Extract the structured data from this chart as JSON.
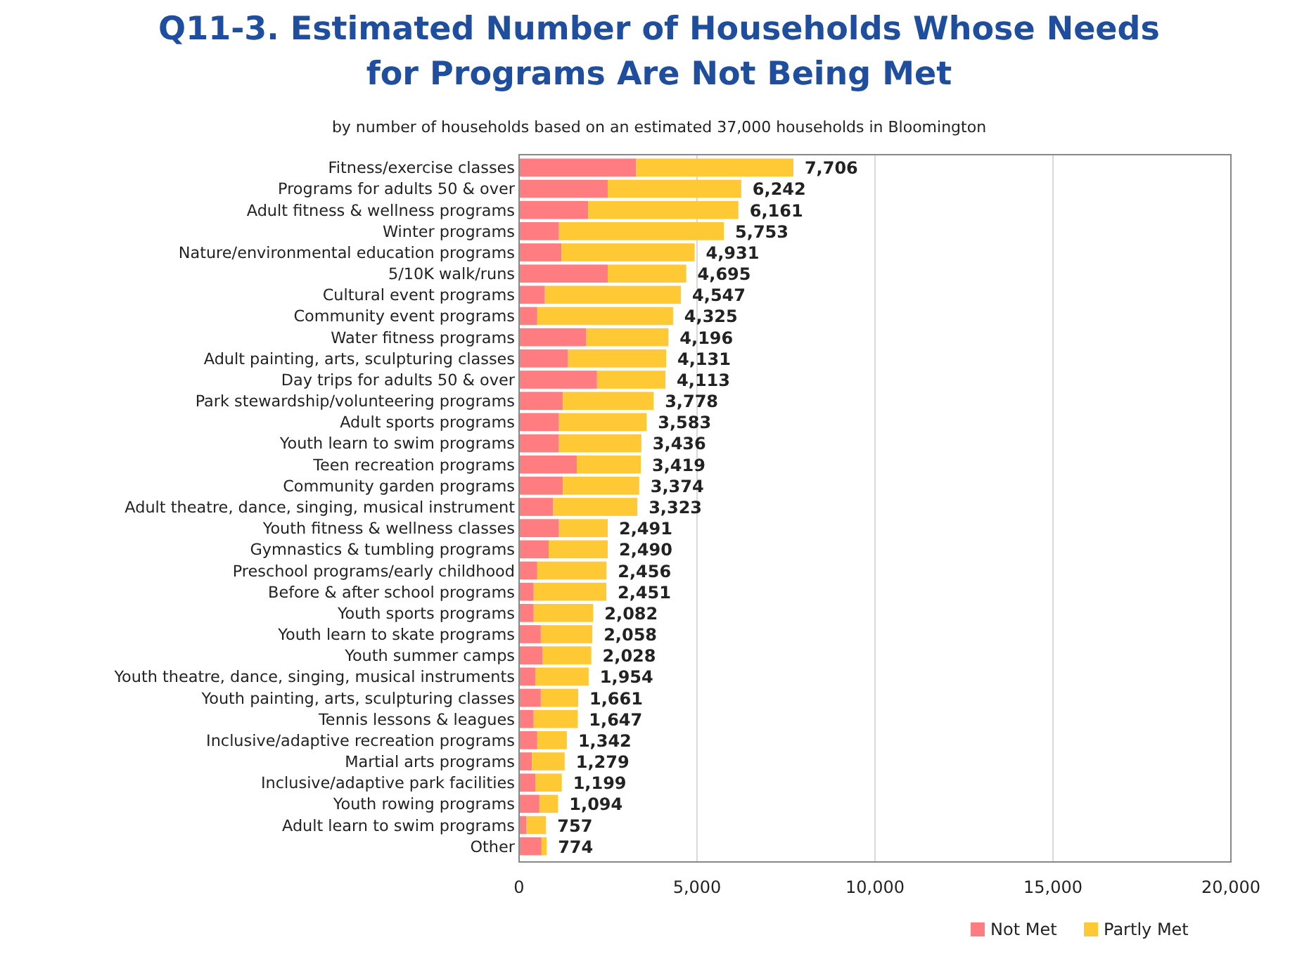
{
  "chart_data": {
    "type": "bar",
    "orientation": "horizontal",
    "stacked": true,
    "title": "Q11-3. Estimated Number of Households Whose Needs for Programs Are Not Being Met",
    "subtitle": "by number of households based on an estimated 37,000 households in Bloomington",
    "categories": [
      "Fitness/exercise classes",
      "Programs for adults 50 & over",
      "Adult fitness & wellness programs",
      "Winter programs",
      "Nature/environmental education programs",
      "5/10K walk/runs",
      "Cultural event programs",
      "Community event programs",
      "Water fitness programs",
      "Adult painting, arts, sculpturing classes",
      "Day trips for adults 50 & over",
      "Park stewardship/volunteering programs",
      "Adult sports programs",
      "Youth learn to swim programs",
      "Teen recreation programs",
      "Community garden programs",
      "Adult theatre, dance, singing, musical instrument",
      "Youth fitness & wellness classes",
      "Gymnastics & tumbling programs",
      "Preschool programs/early childhood",
      "Before & after school programs",
      "Youth sports programs",
      "Youth learn to skate programs",
      "Youth summer camps",
      "Youth theatre, dance, singing, musical instruments",
      "Youth painting, arts, sculpturing classes",
      "Tennis lessons & leagues",
      "Inclusive/adaptive recreation programs",
      "Martial arts programs",
      "Inclusive/adaptive park facilities",
      "Youth rowing programs",
      "Adult learn to swim programs",
      "Other"
    ],
    "series": [
      {
        "name": "Not Met",
        "color": "#ff7c80",
        "values": [
          3290,
          2490,
          1940,
          1120,
          1190,
          2490,
          725,
          510,
          1880,
          1370,
          2190,
          1230,
          1120,
          1120,
          1620,
          1230,
          960,
          1120,
          830,
          510,
          410,
          410,
          610,
          660,
          460,
          610,
          410,
          510,
          360,
          460,
          570,
          210,
          630
        ]
      },
      {
        "name": "Partly Met",
        "color": "#ffc936",
        "values": [
          4416,
          3752,
          4221,
          4633,
          3741,
          2205,
          3822,
          3815,
          2316,
          2761,
          1923,
          2548,
          2463,
          2316,
          1799,
          2144,
          2363,
          1371,
          1660,
          1946,
          2041,
          1672,
          1448,
          1368,
          1494,
          1051,
          1237,
          832,
          919,
          739,
          524,
          547,
          144
        ]
      }
    ],
    "totals": [
      "7,706",
      "6,242",
      "6,161",
      "5,753",
      "4,931",
      "4,695",
      "4,547",
      "4,325",
      "4,196",
      "4,131",
      "4,113",
      "3,778",
      "3,583",
      "3,436",
      "3,419",
      "3,374",
      "3,323",
      "2,491",
      "2,490",
      "2,456",
      "2,451",
      "2,082",
      "2,058",
      "2,028",
      "1,954",
      "1,661",
      "1,647",
      "1,342",
      "1,279",
      "1,199",
      "1,094",
      "757",
      "774"
    ],
    "xlim": [
      0,
      20000
    ],
    "xticks": [
      {
        "value": 0,
        "label": "0"
      },
      {
        "value": 5000,
        "label": "5,000"
      },
      {
        "value": 10000,
        "label": "10,000"
      },
      {
        "value": 15000,
        "label": "15,000"
      },
      {
        "value": 20000,
        "label": "20,000"
      }
    ],
    "grid": "x",
    "legend": "bottom right"
  }
}
